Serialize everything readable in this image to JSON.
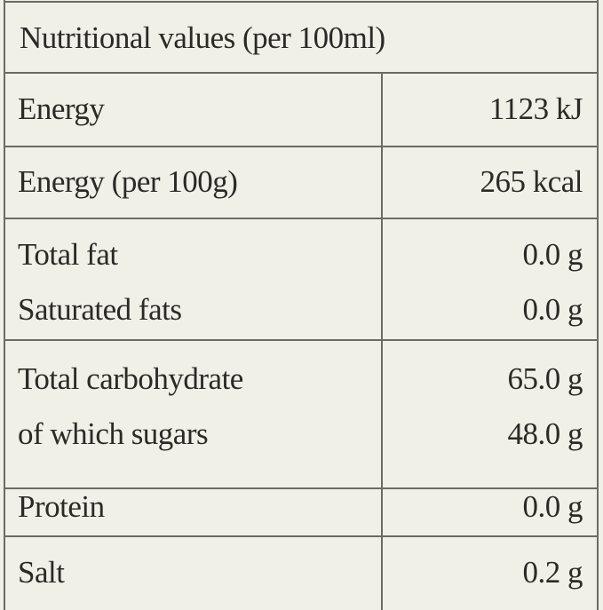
{
  "table": {
    "title": "Nutritional values (per 100ml)",
    "groups": [
      [
        [
          "Energy",
          "1123 kJ"
        ]
      ],
      [
        [
          "Energy (per 100g)",
          "265 kcal"
        ]
      ],
      [
        [
          "Total fat",
          "0.0 g"
        ],
        [
          "Saturated fats",
          "0.0 g"
        ]
      ],
      [
        [
          "Total carbohydrate",
          "65.0 g"
        ],
        [
          "of which sugars",
          "48.0 g"
        ]
      ],
      [
        [
          "Protein",
          "0.0 g"
        ]
      ],
      [
        [
          "Salt",
          "0.2 g"
        ]
      ]
    ]
  }
}
